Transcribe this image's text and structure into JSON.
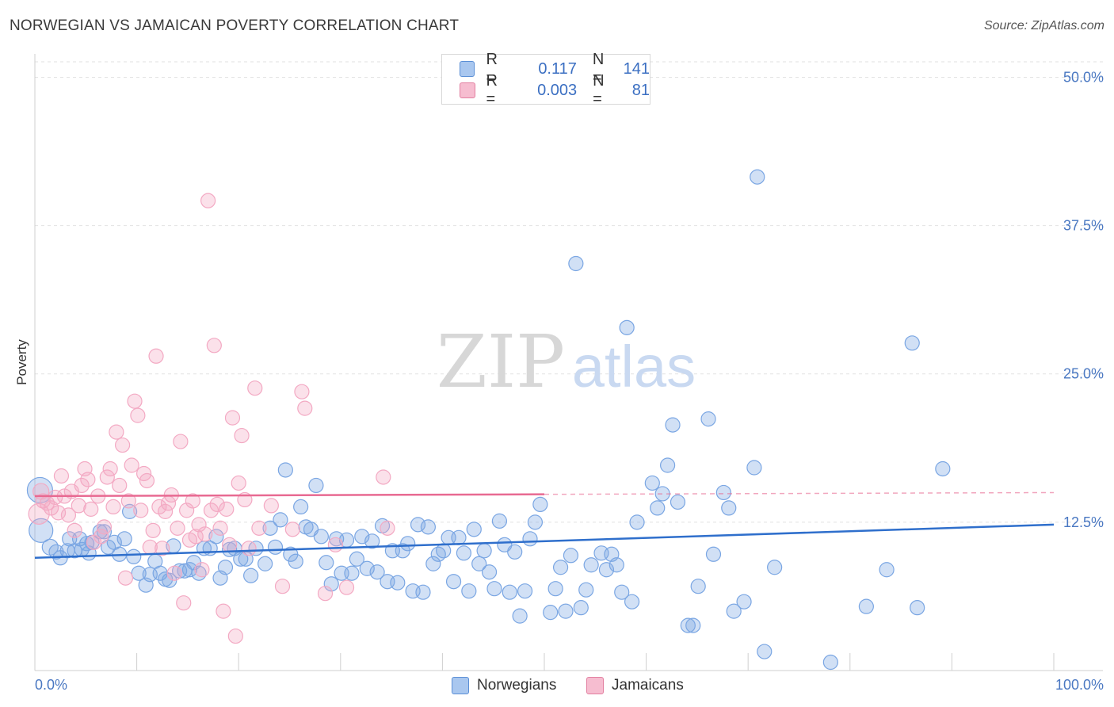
{
  "header": {
    "title": "NORWEGIAN VS JAMAICAN POVERTY CORRELATION CHART",
    "source": "Source: ZipAtlas.com"
  },
  "watermark": {
    "zip": "ZIP",
    "atlas": "atlas"
  },
  "legend": {
    "rows": [
      {
        "r_label": "R =",
        "r_value": "0.117",
        "n_label": "N =",
        "n_value": "141",
        "color": "#a9c7ef",
        "border": "#5b8fd6"
      },
      {
        "r_label": "R =",
        "r_value": "0.003",
        "n_label": "N =",
        "n_value": "81",
        "color": "#f6bdd0",
        "border": "#e27fa0"
      }
    ]
  },
  "bottom_legend": [
    {
      "label": "Norwegians",
      "color": "#a9c7ef",
      "border": "#5b8fd6"
    },
    {
      "label": "Jamaicans",
      "color": "#f6bdd0",
      "border": "#e27fa0"
    }
  ],
  "chart_data": {
    "type": "scatter",
    "title": "NORWEGIAN VS JAMAICAN POVERTY CORRELATION CHART",
    "ylabel": "Poverty",
    "xlabel": "",
    "xlim": [
      0,
      100
    ],
    "ylim": [
      0,
      51.3
    ],
    "x_tick_labels": [
      "0.0%",
      "100.0%"
    ],
    "y_ticks": [
      12.5,
      25.0,
      37.5,
      50.0
    ],
    "y_tick_labels": [
      "12.5%",
      "25.0%",
      "37.5%",
      "50.0%"
    ],
    "grid": true,
    "legend_placement": "top-center",
    "series": [
      {
        "name": "Norwegians",
        "color": "#7aa6e3",
        "line_color": "#2f6fcc",
        "trend": {
          "x": [
            0,
            100
          ],
          "y": [
            9.5,
            12.3
          ],
          "dashed_from": null
        },
        "points": [
          [
            0.5,
            15.2,
            16
          ],
          [
            0.6,
            11.8,
            15
          ],
          [
            1.5,
            10.4,
            10
          ],
          [
            2.1,
            10,
            9
          ],
          [
            2.5,
            9.5,
            9
          ],
          [
            3.2,
            10.1,
            9
          ],
          [
            3.4,
            11.1,
            9
          ],
          [
            3.9,
            10.1,
            9
          ],
          [
            4.4,
            11.1,
            9
          ],
          [
            4.6,
            10.2,
            9
          ],
          [
            5.1,
            10.7,
            9
          ],
          [
            5.3,
            9.9,
            9
          ],
          [
            5.6,
            10.8,
            9
          ],
          [
            6.4,
            11.7,
            9
          ],
          [
            6.8,
            11.7,
            9
          ],
          [
            7.2,
            10.4,
            9
          ],
          [
            7.8,
            10.8,
            9
          ],
          [
            8.3,
            9.8,
            9
          ],
          [
            8.8,
            11.1,
            9
          ],
          [
            9.3,
            13.4,
            9
          ],
          [
            9.7,
            9.6,
            9
          ],
          [
            10.2,
            8.2,
            9
          ],
          [
            10.9,
            7.2,
            9
          ],
          [
            11.3,
            8.1,
            9
          ],
          [
            11.8,
            9.2,
            9
          ],
          [
            12.3,
            8.2,
            9
          ],
          [
            12.8,
            7.7,
            9
          ],
          [
            13.2,
            7.6,
            9
          ],
          [
            13.6,
            10.5,
            9
          ],
          [
            14.2,
            8.4,
            9
          ],
          [
            14.7,
            8.4,
            9
          ],
          [
            15.2,
            8.5,
            9
          ],
          [
            15.6,
            9.1,
            9
          ],
          [
            16.1,
            8.2,
            9
          ],
          [
            16.6,
            10.3,
            9
          ],
          [
            17.2,
            10.3,
            9
          ],
          [
            17.8,
            11.3,
            9
          ],
          [
            18.2,
            7.8,
            9
          ],
          [
            18.7,
            8.7,
            9
          ],
          [
            19.1,
            10.2,
            9
          ],
          [
            19.6,
            10.3,
            9
          ],
          [
            20.2,
            9.4,
            9
          ],
          [
            20.7,
            9.4,
            9
          ],
          [
            21.2,
            8,
            9
          ],
          [
            21.7,
            10.3,
            9
          ],
          [
            22.6,
            9,
            9
          ],
          [
            23.1,
            12,
            9
          ],
          [
            23.6,
            10.4,
            9
          ],
          [
            24.1,
            12.7,
            9
          ],
          [
            24.6,
            16.9,
            9
          ],
          [
            25.1,
            9.8,
            9
          ],
          [
            25.6,
            9.2,
            9
          ],
          [
            26.1,
            13.8,
            9
          ],
          [
            26.6,
            12.1,
            9
          ],
          [
            27.1,
            11.9,
            9
          ],
          [
            27.6,
            15.6,
            9
          ],
          [
            28.1,
            11.3,
            9
          ],
          [
            28.6,
            9.1,
            9
          ],
          [
            29.1,
            7.3,
            9
          ],
          [
            29.6,
            11.1,
            9
          ],
          [
            30.1,
            8.2,
            9
          ],
          [
            30.6,
            11,
            9
          ],
          [
            31.1,
            8.2,
            9
          ],
          [
            31.6,
            9.4,
            9
          ],
          [
            32.1,
            11.3,
            9
          ],
          [
            32.6,
            8.6,
            9
          ],
          [
            33.1,
            10.9,
            9
          ],
          [
            33.6,
            8.3,
            9
          ],
          [
            34.1,
            12.2,
            9
          ],
          [
            34.6,
            7.5,
            9
          ],
          [
            35.1,
            10.1,
            9
          ],
          [
            35.6,
            7.4,
            9
          ],
          [
            36.1,
            10.1,
            9
          ],
          [
            36.6,
            10.7,
            9
          ],
          [
            37.1,
            6.7,
            9
          ],
          [
            37.6,
            12.3,
            9
          ],
          [
            38.1,
            6.6,
            9
          ],
          [
            38.6,
            12.1,
            9
          ],
          [
            39.1,
            9.0,
            9
          ],
          [
            39.6,
            9.8,
            9
          ],
          [
            40.1,
            10.1,
            9
          ],
          [
            40.6,
            11.2,
            9
          ],
          [
            41.1,
            7.5,
            9
          ],
          [
            41.6,
            11.2,
            9
          ],
          [
            42.1,
            9.9,
            9
          ],
          [
            42.6,
            6.7,
            9
          ],
          [
            43.1,
            11.9,
            9
          ],
          [
            43.6,
            9,
            9
          ],
          [
            44.1,
            10.1,
            9
          ],
          [
            44.6,
            8.3,
            9
          ],
          [
            45.1,
            6.9,
            9
          ],
          [
            45.6,
            12.6,
            9
          ],
          [
            46.1,
            10.6,
            9
          ],
          [
            46.6,
            6.6,
            9
          ],
          [
            47.1,
            10,
            9
          ],
          [
            47.6,
            4.6,
            9
          ],
          [
            48.1,
            6.7,
            9
          ],
          [
            48.6,
            11.1,
            9
          ],
          [
            49.1,
            12.5,
            9
          ],
          [
            49.6,
            14.0,
            9
          ],
          [
            50.6,
            4.9,
            9
          ],
          [
            51.1,
            6.9,
            9
          ],
          [
            51.6,
            8.7,
            9
          ],
          [
            52.1,
            5.0,
            9
          ],
          [
            52.6,
            9.7,
            9
          ],
          [
            53.1,
            34.3,
            9
          ],
          [
            53.6,
            5.3,
            9
          ],
          [
            54.1,
            6.8,
            9
          ],
          [
            54.6,
            8.9,
            9
          ],
          [
            55.6,
            9.9,
            9
          ],
          [
            56.1,
            8.5,
            9
          ],
          [
            56.6,
            9.8,
            9
          ],
          [
            57.1,
            8.9,
            9
          ],
          [
            57.6,
            6.6,
            9
          ],
          [
            58.1,
            28.9,
            9
          ],
          [
            58.6,
            5.8,
            9
          ],
          [
            59.1,
            12.5,
            9
          ],
          [
            60.6,
            15.8,
            9
          ],
          [
            61.1,
            13.7,
            9
          ],
          [
            61.6,
            14.9,
            9
          ],
          [
            62.1,
            17.3,
            9
          ],
          [
            62.6,
            20.7,
            9
          ],
          [
            63.1,
            14.2,
            9
          ],
          [
            64.1,
            3.8,
            9
          ],
          [
            64.6,
            3.8,
            9
          ],
          [
            65.1,
            7.1,
            9
          ],
          [
            66.1,
            21.2,
            9
          ],
          [
            66.6,
            9.8,
            9
          ],
          [
            67.6,
            15.0,
            9
          ],
          [
            68.1,
            13.7,
            9
          ],
          [
            68.6,
            5.0,
            9
          ],
          [
            69.6,
            5.8,
            9
          ],
          [
            70.6,
            17.1,
            9
          ],
          [
            70.9,
            41.6,
            9
          ],
          [
            71.6,
            1.6,
            9
          ],
          [
            72.6,
            8.7,
            9
          ],
          [
            78.1,
            0.7,
            9
          ],
          [
            81.6,
            5.4,
            9
          ],
          [
            83.6,
            8.5,
            9
          ],
          [
            86.6,
            5.3,
            9
          ],
          [
            86.1,
            27.6,
            9
          ],
          [
            89.1,
            17.0,
            9
          ]
        ]
      },
      {
        "name": "Jamaicans",
        "color": "#f3a9c3",
        "line_color": "#e86a92",
        "trend": {
          "x": [
            0,
            100
          ],
          "y": [
            14.7,
            15.0
          ],
          "dashed_from": 50
        },
        "points": [
          [
            0.4,
            13.2,
            13
          ],
          [
            0.6,
            15.1,
            10
          ],
          [
            0.8,
            14.3,
            9
          ],
          [
            1.2,
            14.1,
            9
          ],
          [
            1.6,
            13.7,
            9
          ],
          [
            2.0,
            14.6,
            9
          ],
          [
            2.3,
            13.3,
            9
          ],
          [
            2.6,
            16.4,
            9
          ],
          [
            2.9,
            14.7,
            9
          ],
          [
            3.3,
            13.1,
            9
          ],
          [
            3.6,
            15.1,
            9
          ],
          [
            3.9,
            11.8,
            9
          ],
          [
            4.3,
            13.9,
            9
          ],
          [
            4.6,
            15.6,
            9
          ],
          [
            4.9,
            17.0,
            9
          ],
          [
            5.2,
            16.1,
            9
          ],
          [
            5.5,
            13.6,
            9
          ],
          [
            5.8,
            10.8,
            9
          ],
          [
            6.2,
            14.7,
            9
          ],
          [
            6.5,
            11.3,
            9
          ],
          [
            6.8,
            12.1,
            9
          ],
          [
            7.1,
            16.3,
            9
          ],
          [
            7.4,
            17.0,
            9
          ],
          [
            7.7,
            13.8,
            9
          ],
          [
            8.0,
            20.1,
            9
          ],
          [
            8.3,
            15.6,
            9
          ],
          [
            8.6,
            19.0,
            9
          ],
          [
            8.9,
            7.8,
            9
          ],
          [
            9.2,
            14.3,
            9
          ],
          [
            9.5,
            17.3,
            9
          ],
          [
            9.8,
            22.7,
            9
          ],
          [
            10.1,
            21.5,
            9
          ],
          [
            10.4,
            13.5,
            9
          ],
          [
            10.7,
            16.6,
            9
          ],
          [
            11.0,
            16.0,
            9
          ],
          [
            11.3,
            10.4,
            9
          ],
          [
            11.6,
            11.8,
            9
          ],
          [
            11.9,
            26.5,
            9
          ],
          [
            12.2,
            13.8,
            9
          ],
          [
            12.5,
            10.3,
            9
          ],
          [
            12.8,
            13.4,
            9
          ],
          [
            13.1,
            14.1,
            9
          ],
          [
            13.4,
            14.8,
            9
          ],
          [
            13.7,
            8.2,
            9
          ],
          [
            14.0,
            12.0,
            9
          ],
          [
            14.3,
            19.3,
            9
          ],
          [
            14.6,
            5.7,
            9
          ],
          [
            14.9,
            13.5,
            9
          ],
          [
            15.2,
            11.0,
            9
          ],
          [
            15.5,
            14.3,
            9
          ],
          [
            15.8,
            11.3,
            9
          ],
          [
            16.1,
            12.3,
            9
          ],
          [
            16.4,
            8.5,
            9
          ],
          [
            16.7,
            11.5,
            9
          ],
          [
            17.0,
            39.6,
            9
          ],
          [
            17.3,
            13.5,
            9
          ],
          [
            17.6,
            27.4,
            9
          ],
          [
            17.9,
            14.0,
            9
          ],
          [
            18.2,
            12.0,
            9
          ],
          [
            18.5,
            5.0,
            9
          ],
          [
            18.8,
            13.6,
            9
          ],
          [
            19.1,
            10.6,
            9
          ],
          [
            19.4,
            21.3,
            9
          ],
          [
            19.7,
            2.9,
            9
          ],
          [
            20.0,
            15.8,
            9
          ],
          [
            20.3,
            19.8,
            9
          ],
          [
            20.6,
            14.4,
            9
          ],
          [
            21.0,
            10.3,
            9
          ],
          [
            21.6,
            23.8,
            9
          ],
          [
            22.0,
            12.0,
            9
          ],
          [
            23.2,
            13.9,
            9
          ],
          [
            24.3,
            7.1,
            9
          ],
          [
            25.3,
            11.9,
            9
          ],
          [
            26.2,
            23.5,
            9
          ],
          [
            26.5,
            22.1,
            9
          ],
          [
            28.5,
            6.5,
            9
          ],
          [
            29.5,
            10.6,
            9
          ],
          [
            30.6,
            7.0,
            9
          ],
          [
            34.2,
            16.3,
            9
          ],
          [
            34.6,
            12.0,
            9
          ]
        ]
      }
    ]
  }
}
